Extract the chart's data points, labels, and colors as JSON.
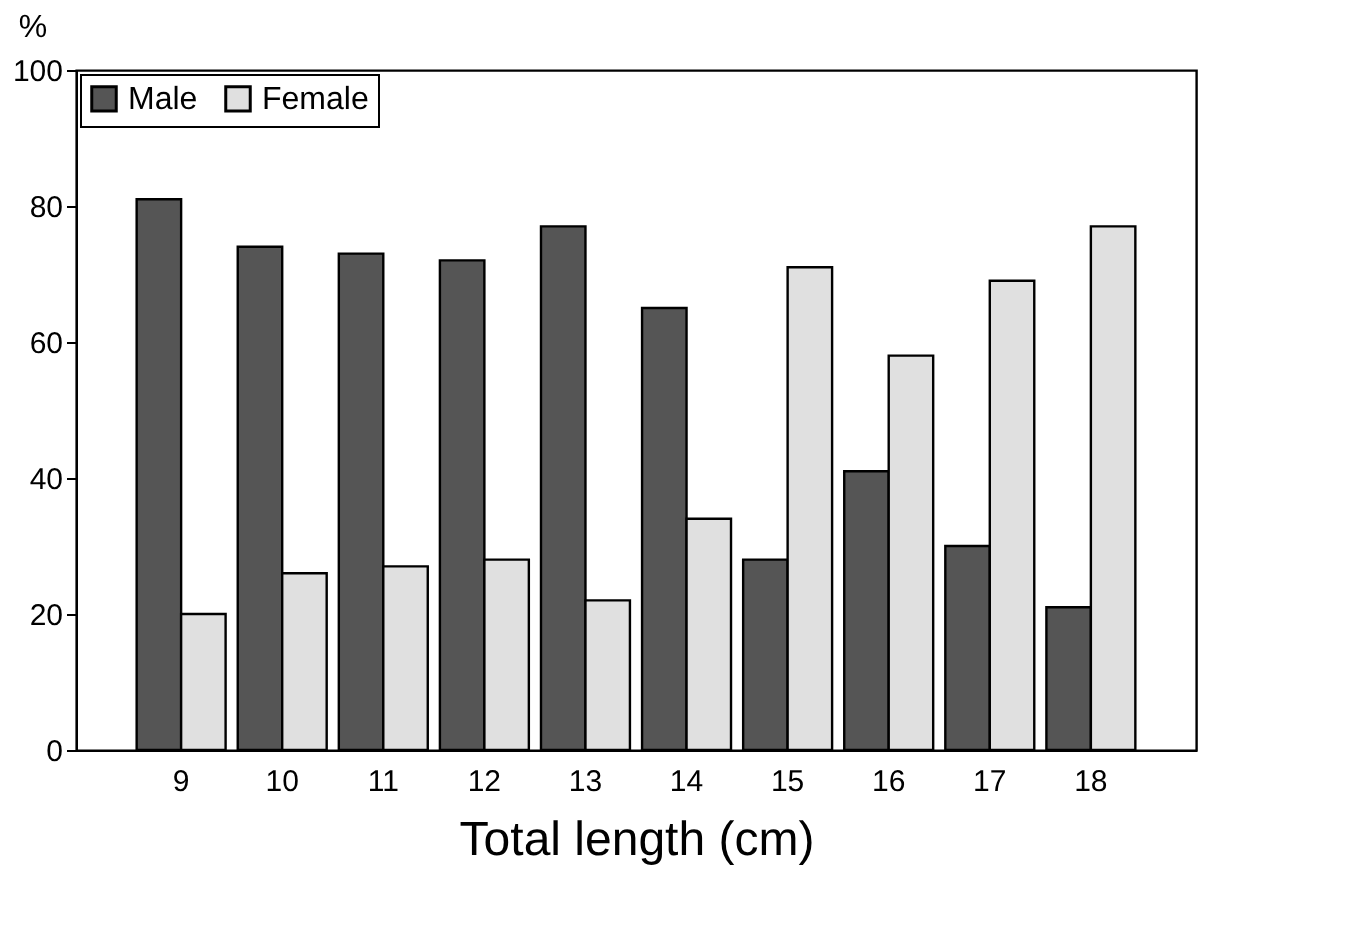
{
  "chart_data": {
    "type": "bar",
    "xlabel": "Total length (cm)",
    "ylabel": "%",
    "categories": [
      "9",
      "10",
      "11",
      "12",
      "13",
      "14",
      "15",
      "16",
      "17",
      "18"
    ],
    "series": [
      {
        "name": "Male",
        "color": "#555555",
        "values": [
          81,
          74,
          73,
          72,
          77,
          65,
          28,
          41,
          30,
          21
        ]
      },
      {
        "name": "Female",
        "color": "#e0e0e0",
        "values": [
          20,
          26,
          27,
          28,
          22,
          34,
          71,
          58,
          69,
          77
        ]
      }
    ],
    "ylim": [
      0,
      100
    ],
    "yticks": [
      0,
      20,
      40,
      60,
      80,
      100
    ],
    "grid": false,
    "legend": "top left"
  }
}
